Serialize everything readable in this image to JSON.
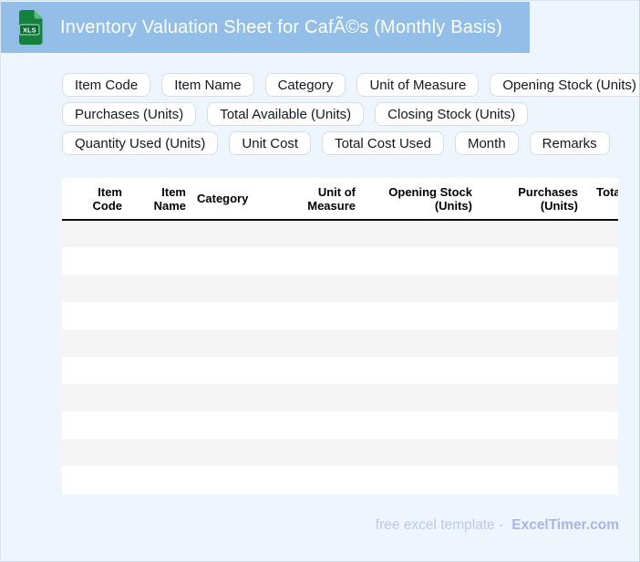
{
  "header": {
    "title": "Inventory Valuation Sheet for CafÃ©s (Monthly Basis)",
    "icon_label": "XLS"
  },
  "chips": {
    "rows": [
      [
        "Item Code",
        "Item Name",
        "Category",
        "Unit of Measure",
        "Opening Stock (Units)"
      ],
      [
        "Purchases (Units)",
        "Total Available (Units)",
        "Closing Stock (Units)"
      ],
      [
        "Quantity Used (Units)",
        "Unit Cost",
        "Total Cost Used",
        "Month",
        "Remarks"
      ]
    ]
  },
  "table": {
    "columns": [
      {
        "label": "Item Code",
        "align": "right"
      },
      {
        "label": "Item Name",
        "align": "right"
      },
      {
        "label": "Category",
        "align": "left"
      },
      {
        "label": "Unit of Measure",
        "align": "right"
      },
      {
        "label": "Opening Stock (Units)",
        "align": "right"
      },
      {
        "label": "Purchases (Units)",
        "align": "right"
      },
      {
        "label": "Total Available (Units)",
        "align": "right"
      }
    ],
    "row_count": 10,
    "cells_empty": true
  },
  "footer": {
    "prefix": "free excel template -",
    "brand": "ExcelTimer.com"
  },
  "colors": {
    "header_bg": "#92bee7",
    "page_bg": "#eff5fd",
    "stripe_gray": "#f5f5f5",
    "icon_green": "#15813f",
    "footer_text": "#bdc8f1",
    "footer_brand": "#a9b5e7"
  }
}
